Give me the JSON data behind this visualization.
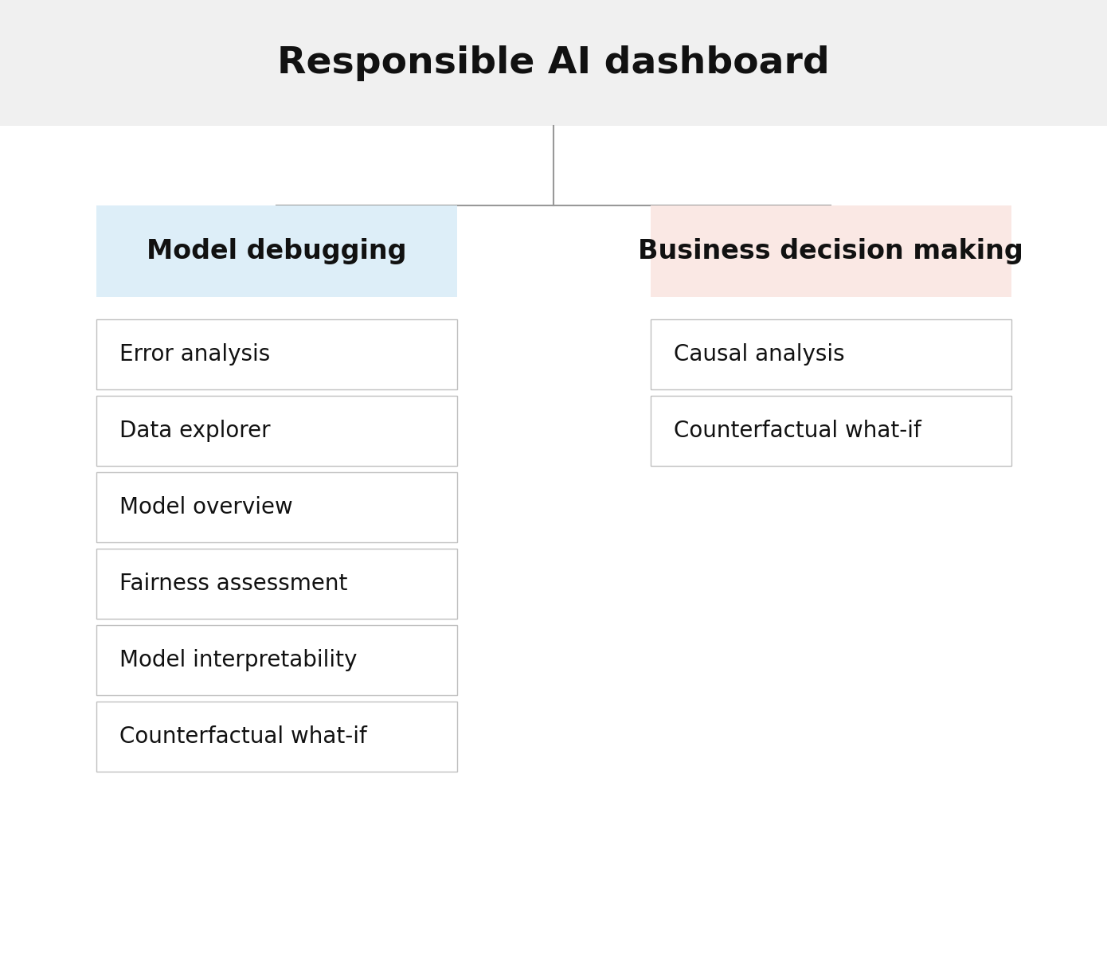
{
  "title": "Responsible AI dashboard",
  "title_fontsize": 34,
  "title_bg_color": "#f0f0f0",
  "bg_color": "#ffffff",
  "left_header": "Model debugging",
  "left_header_bg": "#ddeef8",
  "right_header": "Business decision making",
  "right_header_bg": "#fae8e4",
  "header_fontsize": 24,
  "left_items": [
    "Error analysis",
    "Data explorer",
    "Model overview",
    "Fairness assessment",
    "Model interpretability",
    "Counterfactual what-if"
  ],
  "right_items": [
    "Causal analysis",
    "Counterfactual what-if"
  ],
  "item_fontsize": 20,
  "box_edge_color": "#c0c0c0",
  "line_color": "#999999",
  "fig_width": 13.9,
  "fig_height": 11.98,
  "dpi": 100
}
